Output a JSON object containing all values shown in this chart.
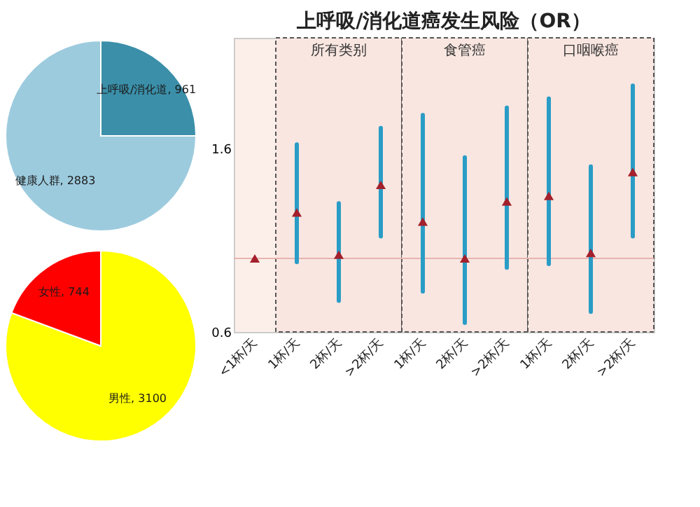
{
  "chart_data": [
    {
      "type": "pie",
      "categories": [
        "上呼吸/消化道",
        "健康人群"
      ],
      "values": [
        961,
        2883
      ],
      "colors": [
        "#3b8fa9",
        "#9dcbde"
      ],
      "value_labels": [
        "961",
        "2883"
      ]
    },
    {
      "type": "pie",
      "categories": [
        "男性",
        "女性"
      ],
      "values": [
        3100,
        744
      ],
      "colors": [
        "#ffff00",
        "#ff0000"
      ],
      "value_labels": [
        "3100",
        "744"
      ]
    },
    {
      "type": "scatter",
      "title": "上呼吸/消化道癌发生风险（OR）",
      "categories": [
        "<1杯/天",
        "1杯/天",
        "2杯/天",
        ">2杯/天",
        "1杯/天",
        "2杯/天",
        ">2杯/天",
        "1杯/天",
        "2杯/天",
        ">2杯/天"
      ],
      "series": [
        {
          "color": "#a3202c",
          "values": [
            1.0,
            1.25,
            1.02,
            1.4,
            1.2,
            1.0,
            1.31,
            1.34,
            1.03,
            1.47
          ],
          "errors": [
            null,
            [
              0.98,
              1.62
            ],
            [
              0.77,
              1.3
            ],
            [
              1.12,
              1.71
            ],
            [
              0.82,
              1.78
            ],
            [
              0.65,
              1.55
            ],
            [
              0.95,
              1.82
            ],
            [
              0.97,
              1.87
            ],
            [
              0.71,
              1.5
            ],
            [
              1.12,
              1.94
            ]
          ]
        }
      ],
      "marker": "triangle",
      "ylim": [
        0.6,
        2.2
      ],
      "yticks": [
        0.6,
        1.6
      ],
      "grid": false,
      "ref_lines": [
        {
          "axis": "y",
          "value": 1.0,
          "color": "#e8b4b0"
        }
      ],
      "annotations": [
        "所有类别",
        "食管癌",
        "口咽喉癌"
      ]
    }
  ]
}
